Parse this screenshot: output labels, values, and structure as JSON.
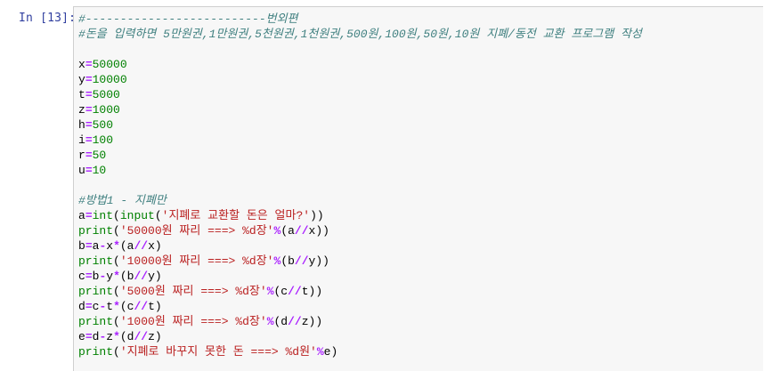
{
  "prompt": "In [13]:",
  "code_lines": [
    [
      {
        "t": "#--------------------------번외편",
        "c": "comment"
      }
    ],
    [
      {
        "t": "#돈을 입력하면 5만원권,1만원권,5천원권,1천원권,500원,100원,50원,10원 지폐/동전 교환 프로그램 작성",
        "c": "comment"
      }
    ],
    [],
    [
      {
        "t": "x",
        "c": ""
      },
      {
        "t": "=",
        "c": "op"
      },
      {
        "t": "50000",
        "c": "num"
      }
    ],
    [
      {
        "t": "y",
        "c": ""
      },
      {
        "t": "=",
        "c": "op"
      },
      {
        "t": "10000",
        "c": "num"
      }
    ],
    [
      {
        "t": "t",
        "c": ""
      },
      {
        "t": "=",
        "c": "op"
      },
      {
        "t": "5000",
        "c": "num"
      }
    ],
    [
      {
        "t": "z",
        "c": ""
      },
      {
        "t": "=",
        "c": "op"
      },
      {
        "t": "1000",
        "c": "num"
      }
    ],
    [
      {
        "t": "h",
        "c": ""
      },
      {
        "t": "=",
        "c": "op"
      },
      {
        "t": "500",
        "c": "num"
      }
    ],
    [
      {
        "t": "i",
        "c": ""
      },
      {
        "t": "=",
        "c": "op"
      },
      {
        "t": "100",
        "c": "num"
      }
    ],
    [
      {
        "t": "r",
        "c": ""
      },
      {
        "t": "=",
        "c": "op"
      },
      {
        "t": "50",
        "c": "num"
      }
    ],
    [
      {
        "t": "u",
        "c": ""
      },
      {
        "t": "=",
        "c": "op"
      },
      {
        "t": "10",
        "c": "num"
      }
    ],
    [],
    [
      {
        "t": "#방법1 - 지폐만",
        "c": "comment"
      }
    ],
    [
      {
        "t": "a",
        "c": ""
      },
      {
        "t": "=",
        "c": "op"
      },
      {
        "t": "int",
        "c": "kw"
      },
      {
        "t": "(",
        "c": ""
      },
      {
        "t": "input",
        "c": "kw"
      },
      {
        "t": "(",
        "c": ""
      },
      {
        "t": "'지폐로 교환할 돈은 얼마?'",
        "c": "string"
      },
      {
        "t": "))",
        "c": ""
      }
    ],
    [
      {
        "t": "print",
        "c": "kw"
      },
      {
        "t": "(",
        "c": ""
      },
      {
        "t": "'50000원 짜리 ===> %d장'",
        "c": "string"
      },
      {
        "t": "%",
        "c": "op"
      },
      {
        "t": "(a",
        "c": ""
      },
      {
        "t": "//",
        "c": "op"
      },
      {
        "t": "x))",
        "c": ""
      }
    ],
    [
      {
        "t": "b",
        "c": ""
      },
      {
        "t": "=",
        "c": "op"
      },
      {
        "t": "a",
        "c": ""
      },
      {
        "t": "-",
        "c": "op"
      },
      {
        "t": "x",
        "c": ""
      },
      {
        "t": "*",
        "c": "op"
      },
      {
        "t": "(a",
        "c": ""
      },
      {
        "t": "//",
        "c": "op"
      },
      {
        "t": "x)",
        "c": ""
      }
    ],
    [
      {
        "t": "print",
        "c": "kw"
      },
      {
        "t": "(",
        "c": ""
      },
      {
        "t": "'10000원 짜리 ===> %d장'",
        "c": "string"
      },
      {
        "t": "%",
        "c": "op"
      },
      {
        "t": "(b",
        "c": ""
      },
      {
        "t": "//",
        "c": "op"
      },
      {
        "t": "y))",
        "c": ""
      }
    ],
    [
      {
        "t": "c",
        "c": ""
      },
      {
        "t": "=",
        "c": "op"
      },
      {
        "t": "b",
        "c": ""
      },
      {
        "t": "-",
        "c": "op"
      },
      {
        "t": "y",
        "c": ""
      },
      {
        "t": "*",
        "c": "op"
      },
      {
        "t": "(b",
        "c": ""
      },
      {
        "t": "//",
        "c": "op"
      },
      {
        "t": "y)",
        "c": ""
      }
    ],
    [
      {
        "t": "print",
        "c": "kw"
      },
      {
        "t": "(",
        "c": ""
      },
      {
        "t": "'5000원 짜리 ===> %d장'",
        "c": "string"
      },
      {
        "t": "%",
        "c": "op"
      },
      {
        "t": "(c",
        "c": ""
      },
      {
        "t": "//",
        "c": "op"
      },
      {
        "t": "t))",
        "c": ""
      }
    ],
    [
      {
        "t": "d",
        "c": ""
      },
      {
        "t": "=",
        "c": "op"
      },
      {
        "t": "c",
        "c": ""
      },
      {
        "t": "-",
        "c": "op"
      },
      {
        "t": "t",
        "c": ""
      },
      {
        "t": "*",
        "c": "op"
      },
      {
        "t": "(c",
        "c": ""
      },
      {
        "t": "//",
        "c": "op"
      },
      {
        "t": "t)",
        "c": ""
      }
    ],
    [
      {
        "t": "print",
        "c": "kw"
      },
      {
        "t": "(",
        "c": ""
      },
      {
        "t": "'1000원 짜리 ===> %d장'",
        "c": "string"
      },
      {
        "t": "%",
        "c": "op"
      },
      {
        "t": "(d",
        "c": ""
      },
      {
        "t": "//",
        "c": "op"
      },
      {
        "t": "z))",
        "c": ""
      }
    ],
    [
      {
        "t": "e",
        "c": ""
      },
      {
        "t": "=",
        "c": "op"
      },
      {
        "t": "d",
        "c": ""
      },
      {
        "t": "-",
        "c": "op"
      },
      {
        "t": "z",
        "c": ""
      },
      {
        "t": "*",
        "c": "op"
      },
      {
        "t": "(d",
        "c": ""
      },
      {
        "t": "//",
        "c": "op"
      },
      {
        "t": "z)",
        "c": ""
      }
    ],
    [
      {
        "t": "print",
        "c": "kw"
      },
      {
        "t": "(",
        "c": ""
      },
      {
        "t": "'지폐로 바꾸지 못한 돈 ===> %d원'",
        "c": "string"
      },
      {
        "t": "%",
        "c": "op"
      },
      {
        "t": "e)",
        "c": ""
      }
    ]
  ]
}
